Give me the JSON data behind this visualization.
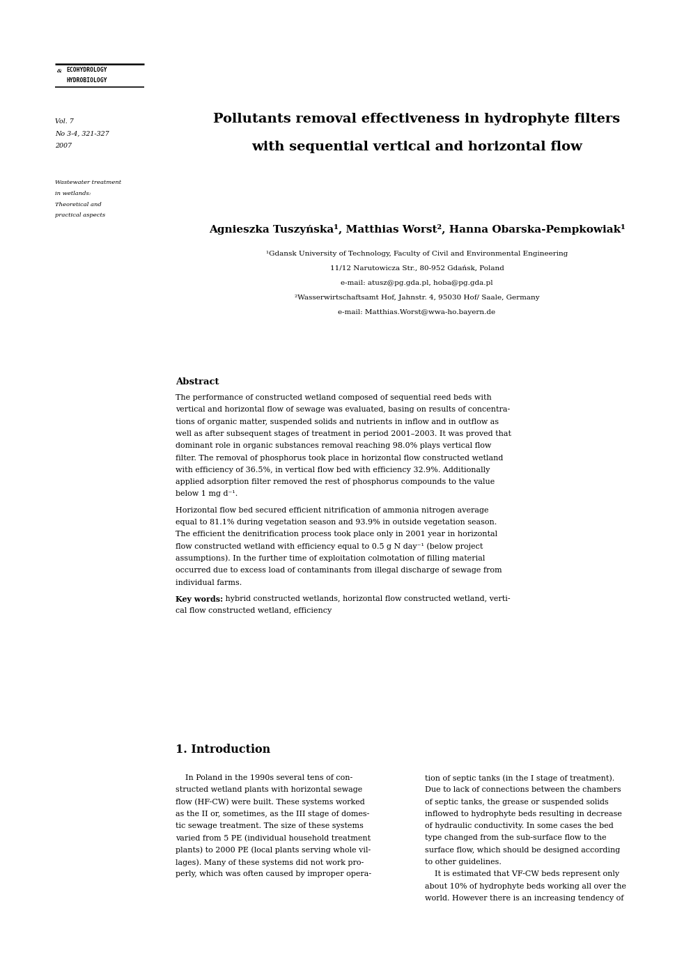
{
  "background_color": "#ffffff",
  "page_width": 9.92,
  "page_height": 14.03,
  "journal_name_line1": "ECOHYDROLOGY",
  "journal_name_line2": "HYDROBIOLOGY",
  "vol_info_lines": [
    "Vol. 7",
    "No 3-4, 321-327",
    "2007"
  ],
  "section_label_lines": [
    "Wastewater treatment",
    "in wetlands:",
    "Theoretical and",
    "practical aspects"
  ],
  "paper_title_line1": "Pollutants removal effectiveness in hydrophyte filters",
  "paper_title_line2": "with sequential vertical and horizontal flow",
  "authors": "Agnieszka Tuszyńska¹, Matthias Worst², Hanna Obarska-Pempkowiak¹",
  "affil1": "¹Gdansk University of Technology, Faculty of Civil and Environmental Engineering",
  "affil2": "11/12 Narutowicza Str., 80-952 Gdańsk, Poland",
  "affil3": "e-mail: atusz@pg.gda.pl, hoba@pg.gda.pl",
  "affil4": "²Wasserwirtschaftsamt Hof, Jahnstr. 4, 95030 Hof/ Saale, Germany",
  "affil5": "e-mail: Matthias.Worst@wwa-ho.bayern.de",
  "abstract_title": "Abstract",
  "abstract_p1": "The performance of constructed wetland composed of sequential reed beds with vertical and horizontal flow of sewage was evaluated, basing on results of concentrations of organic matter, suspended solids and nutrients in inflow and in outflow as well as after subsequent stages of treatment in period 2001–2003. It was proved that dominant role in organic substances removal reaching 98.0% plays vertical flow filter. The removal of phosphorus took place in horizontal flow constructed wetland with efficiency of 36.5%, in vertical flow bed with efficiency 32.9%. Additionally applied adsorption filter removed the rest of phosphorus compounds to the value below 1 mg d⁻¹.",
  "abstract_p2": "Horizontal flow bed secured efficient nitrification of ammonia nitrogen average equal to 81.1% during vegetation season and 93.9% in outside vegetation season. The efficient the denitrification process took place only in 2001 year in horizontal flow constructed wetland with efficiency equal to 0.5 g N day⁻¹ (below project assumptions). In the further time of exploitation colmotation of filling material occurred due to excess load of contaminants from illegal discharge of sewage from individual farms.",
  "keywords_label": "Key words:",
  "keywords_rest": " hybrid constructed wetlands, horizontal flow constructed wetland, verti-cal flow constructed wetland, efficiency",
  "keywords_line1": "Key words: hybrid constructed wetlands, horizontal flow constructed wetland, verti-",
  "keywords_line2": "cal flow constructed wetland, efficiency",
  "intro_title": "1. Introduction",
  "intro_col1_lines": [
    "    In Poland in the 1990s several tens of con-",
    "structed wetland plants with horizontal sewage",
    "flow (HF-CW) were built. These systems worked",
    "as the II or, sometimes, as the III stage of domes-",
    "tic sewage treatment. The size of these systems",
    "varied from 5 PE (individual household treatment",
    "plants) to 2000 PE (local plants serving whole vil-",
    "lages). Many of these systems did not work pro-",
    "perly, which was often caused by improper opera-"
  ],
  "intro_col2_lines": [
    "tion of septic tanks (in the I stage of treatment).",
    "Due to lack of connections between the chambers",
    "of septic tanks, the grease or suspended solids",
    "inflowed to hydrophyte beds resulting in decrease",
    "of hydraulic conductivity. In some cases the bed",
    "type changed from the sub-surface flow to the",
    "surface flow, which should be designed according",
    "to other guidelines.",
    "    It is estimated that VF-CW beds represent only",
    "about 10% of hydrophyte beds working all over the",
    "world. However there is an increasing tendency of"
  ]
}
